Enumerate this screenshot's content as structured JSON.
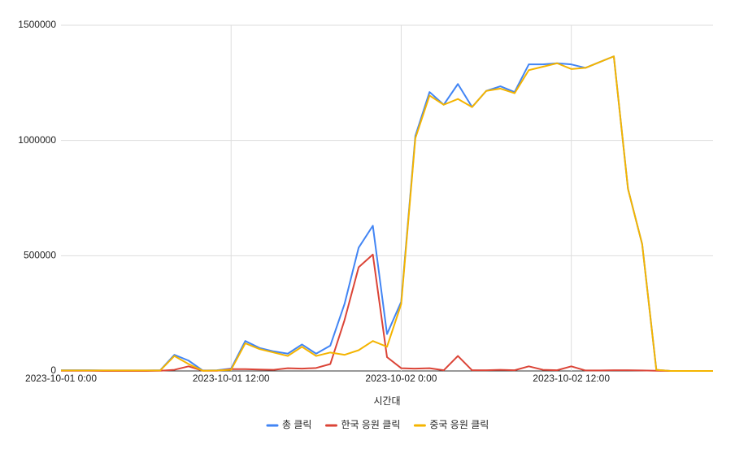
{
  "chart_data": {
    "type": "line",
    "x_label": "시간대",
    "categories": [
      "2023-10-01 0:00",
      null,
      null,
      null,
      null,
      null,
      null,
      null,
      null,
      null,
      null,
      null,
      "2023-10-01 12:00",
      null,
      null,
      null,
      null,
      null,
      null,
      null,
      null,
      null,
      null,
      null,
      "2023-10-02 0:00",
      null,
      null,
      null,
      null,
      null,
      null,
      null,
      null,
      null,
      null,
      null,
      "2023-10-02 12:00",
      null,
      null,
      null,
      null,
      null,
      null,
      null,
      null,
      null,
      null
    ],
    "series": [
      {
        "name": "총 클릭",
        "color": "#4285f4",
        "values": [
          3000,
          3000,
          3000,
          2000,
          2000,
          2000,
          2000,
          3000,
          70000,
          45000,
          2000,
          3000,
          10000,
          130000,
          100000,
          85000,
          75000,
          115000,
          75000,
          110000,
          290000,
          535000,
          630000,
          160000,
          300000,
          1020000,
          1210000,
          1155000,
          1245000,
          1145000,
          1215000,
          1235000,
          1210000,
          1330000,
          1330000,
          1335000,
          1330000,
          1315000,
          1340000,
          1365000,
          790000,
          550000,
          5000,
          0,
          0,
          0,
          0
        ]
      },
      {
        "name": "한국 응원 클릭",
        "color": "#db4437",
        "values": [
          1000,
          1000,
          1000,
          0,
          0,
          0,
          0,
          1000,
          5000,
          20000,
          1000,
          1000,
          8000,
          8000,
          6000,
          5000,
          12000,
          10000,
          13000,
          30000,
          220000,
          450000,
          505000,
          60000,
          12000,
          10000,
          12000,
          3000,
          65000,
          3000,
          3000,
          5000,
          3000,
          20000,
          5000,
          3000,
          20000,
          2000,
          2000,
          3000,
          3000,
          2000,
          1000,
          0,
          0,
          0,
          0
        ]
      },
      {
        "name": "중국 응원 클릭",
        "color": "#f4b400",
        "values": [
          2000,
          2000,
          2000,
          2000,
          2000,
          2000,
          2000,
          2000,
          65000,
          30000,
          1000,
          2000,
          5000,
          120000,
          95000,
          80000,
          65000,
          105000,
          65000,
          80000,
          70000,
          90000,
          130000,
          105000,
          290000,
          1010000,
          1195000,
          1155000,
          1180000,
          1145000,
          1215000,
          1225000,
          1205000,
          1305000,
          1320000,
          1335000,
          1310000,
          1315000,
          1340000,
          1365000,
          790000,
          550000,
          5000,
          0,
          0,
          0,
          0
        ]
      }
    ],
    "ylim": [
      0,
      1500000
    ],
    "yticks": [
      0,
      500000,
      1000000,
      1500000
    ],
    "grid": true,
    "legend": "bottom"
  }
}
